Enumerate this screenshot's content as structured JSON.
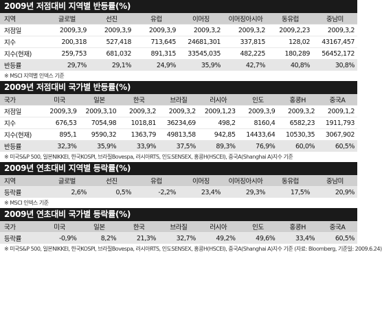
{
  "sections": [
    {
      "title": "2009년 저점대비 지역별 반등률(%)",
      "header": [
        "지역",
        "글로벌",
        "선진",
        "유럽",
        "이머징",
        "이머징아시아",
        "동유럽",
        "중남미"
      ],
      "rows": [
        {
          "label": "저점일",
          "values": [
            "2009,3,9",
            "2009,3,9",
            "2009,3,9",
            "2009,3,2",
            "2009,3,2",
            "2009,2,23",
            "2009,3,2"
          ]
        },
        {
          "label": "지수",
          "values": [
            "200,318",
            "527,418",
            "713,645",
            "24681,301",
            "337,815",
            "128,02",
            "43167,457"
          ]
        },
        {
          "label": "지수(현재)",
          "values": [
            "259,753",
            "681,032",
            "891,315",
            "33545,035",
            "482,225",
            "180,289",
            "56452,172"
          ]
        },
        {
          "label": "반등률",
          "values": [
            "29,7%",
            "29,1%",
            "24,9%",
            "35,9%",
            "42,7%",
            "40,8%",
            "30,8%"
          ]
        }
      ],
      "note": "※ MSCI 지역별 인덱스 기준"
    },
    {
      "title": "2009년 저점대비 국가별 반등률(%)",
      "header": [
        "국가",
        "미국",
        "일본",
        "한국",
        "브라질",
        "러시아",
        "인도",
        "홍콩H",
        "중국A"
      ],
      "rows": [
        {
          "label": "저점일",
          "values": [
            "2009,3,9",
            "2009,3,10",
            "2009,3,2",
            "2009,3,2",
            "2009,1,23",
            "2009,3,9",
            "2009,3,2",
            "2009,1,2"
          ]
        },
        {
          "label": "지수",
          "values": [
            "676,53",
            "7054,98",
            "1018,81",
            "36234,69",
            "498,2",
            "8160,4",
            "6582,23",
            "1911,793"
          ]
        },
        {
          "label": "지수(현재)",
          "values": [
            "895,1",
            "9590,32",
            "1363,79",
            "49813,58",
            "942,85",
            "14433,64",
            "10530,35",
            "3067,902"
          ]
        },
        {
          "label": "반등률",
          "values": [
            "32,3%",
            "35,9%",
            "33,9%",
            "37,5%",
            "89,3%",
            "76,9%",
            "60,0%",
            "60,5%"
          ]
        }
      ],
      "note": "※ 미국S&P 500, 일본NIKKEI, 한국KOSPI, 브라질Bovespa, 러시아RTS, 인도SENSEX, 홍콩H(HSCEI), 중국A(Shanghai A)지수 기준"
    },
    {
      "title": "2009년 연초대비 지역별 등락률(%)",
      "header": [
        "지역",
        "글로벌",
        "선진",
        "유럽",
        "이머징",
        "이머징아시아",
        "동유럽",
        "중남미"
      ],
      "rows": [
        {
          "label": "등락률",
          "values": [
            "2,6%",
            "0,5%",
            "-2,2%",
            "23,4%",
            "29,3%",
            "17,5%",
            "20,9%"
          ]
        }
      ],
      "note": "※ MSCI 인덱스 기준"
    },
    {
      "title": "2009년 연초대비 국가별 등락률(%)",
      "header": [
        "국가",
        "미국",
        "일본",
        "한국",
        "브라질",
        "러시아",
        "인도",
        "홍콩H",
        "중국A"
      ],
      "rows": [
        {
          "label": "등락률",
          "values": [
            "-0,9%",
            "8,2%",
            "21,3%",
            "32,7%",
            "49,2%",
            "49,6%",
            "33,4%",
            "60,5%"
          ]
        }
      ],
      "note": "※ 미국S&P 500, 일본NIKKEI, 한국KOSPI, 브라질Bovespa, 러시아RTS, 인도SENSEX, 홍콩H(HSCEI), 중국A(Shanghai A)지수 기준  (자료: Bloomberg, 기준일: 2009.6.24)"
    }
  ]
}
